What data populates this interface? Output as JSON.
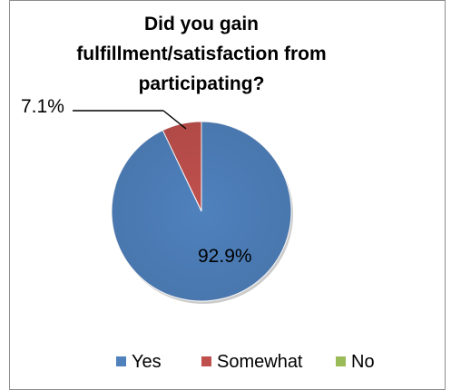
{
  "chart_data": {
    "type": "pie",
    "title_lines": [
      "Did you gain",
      "fulfillment/satisfaction from",
      "participating?"
    ],
    "categories": [
      "Yes",
      "Somewhat",
      "No"
    ],
    "values": [
      92.9,
      7.1,
      0
    ],
    "colors": [
      "#4f81bd",
      "#c0504d",
      "#9bbb59"
    ],
    "data_labels": [
      "92.9%",
      "7.1%",
      ""
    ],
    "legend_position": "bottom"
  }
}
